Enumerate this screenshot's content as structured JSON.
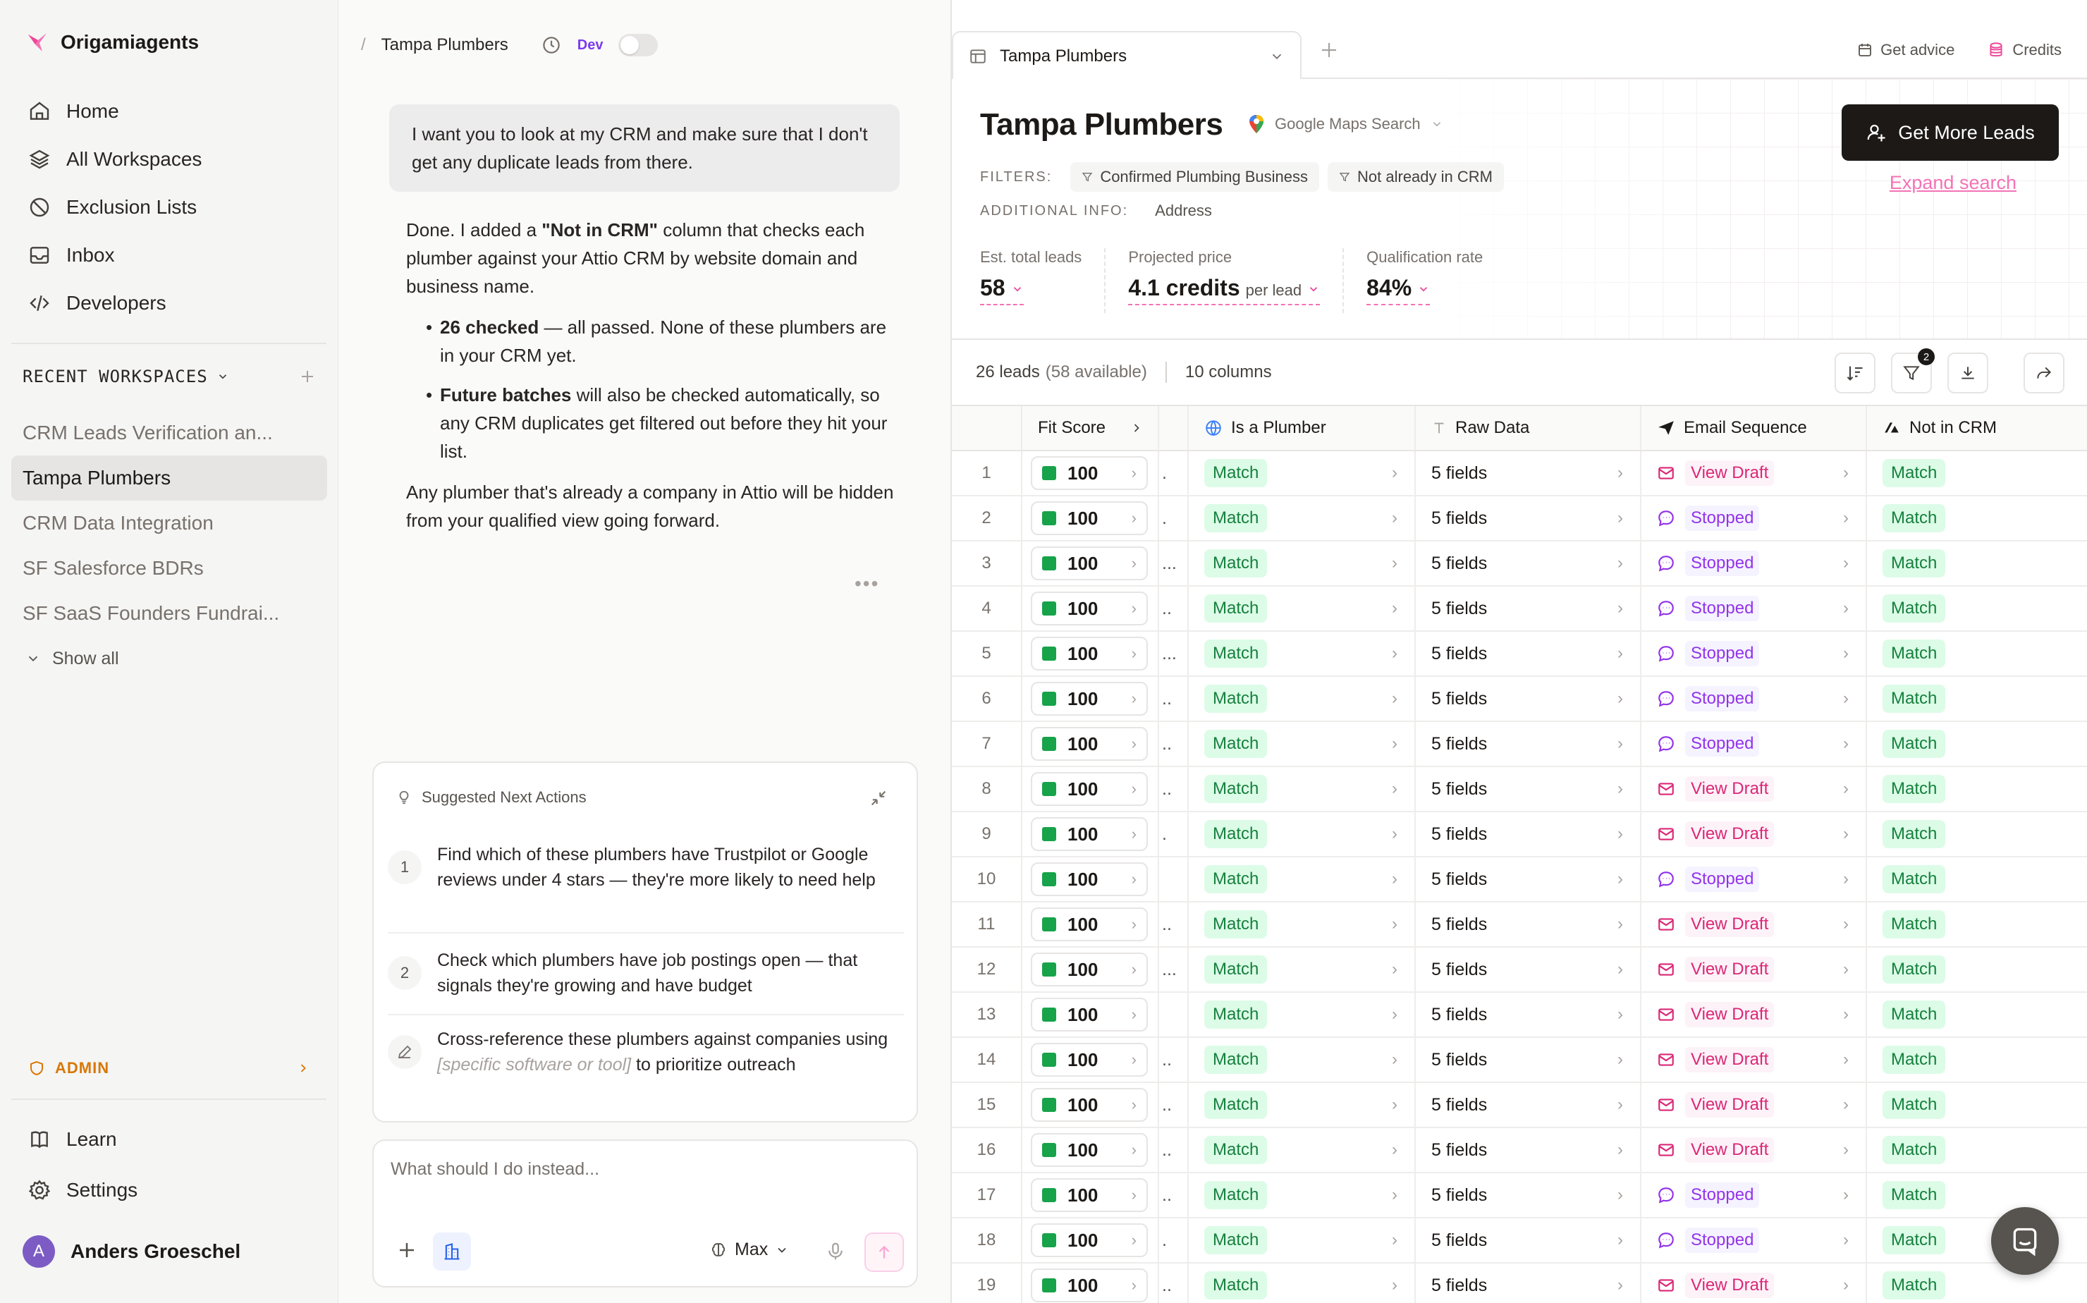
{
  "sidebar": {
    "brand": "Origamiagents",
    "nav": [
      {
        "label": "Home",
        "icon": "home-icon"
      },
      {
        "label": "All Workspaces",
        "icon": "layers-icon"
      },
      {
        "label": "Exclusion Lists",
        "icon": "block-icon"
      },
      {
        "label": "Inbox",
        "icon": "inbox-icon"
      },
      {
        "label": "Developers",
        "icon": "code-icon"
      }
    ],
    "recent_title": "RECENT WORKSPACES",
    "recent": [
      "CRM Leads Verification an...",
      "Tampa Plumbers",
      "CRM Data Integration",
      "SF Salesforce BDRs",
      "SF SaaS Founders Fundrai..."
    ],
    "show_all": "Show all",
    "admin_label": "ADMIN",
    "bottom_nav": [
      {
        "label": "Learn",
        "icon": "book-icon"
      },
      {
        "label": "Settings",
        "icon": "gear-icon"
      }
    ],
    "user": {
      "initial": "A",
      "name": "Anders Groeschel"
    }
  },
  "chat": {
    "breadcrumb": "Tampa Plumbers",
    "dev_label": "Dev",
    "user_message": "I want you to look at my CRM and make sure that I don't get any duplicate leads from there.",
    "bot": {
      "p1_a": "Done. I added a ",
      "p1_b": "\"Not in CRM\"",
      "p1_c": " column that checks each plumber against your Attio CRM by website domain and business name.",
      "b1_bold": "26 checked",
      "b1_rest": " — all passed. None of these plumbers are in your CRM yet.",
      "b2_bold": "Future batches",
      "b2_rest": " will also be checked automatically, so any CRM duplicates get filtered out before they hit your list.",
      "p2": "Any plumber that's already a company in Attio will be hidden from your qualified view going forward."
    },
    "more": "•••",
    "suggest_title": "Suggested Next Actions",
    "suggestions": [
      {
        "num": "1",
        "text": "Find which of these plumbers have Trustpilot or Google reviews under 4 stars — they're more likely to need help"
      },
      {
        "num": "2",
        "text": "Check which plumbers have job postings open — that signals they're growing and have budget"
      }
    ],
    "suggestion3": {
      "a": "Cross-reference these plumbers against companies using ",
      "placeholder": "[specific software or tool]",
      "b": " to prioritize outreach"
    },
    "composer_placeholder": "What should I do instead...",
    "model": "Max"
  },
  "main": {
    "tab_label": "Tampa Plumbers",
    "get_advice": "Get advice",
    "credits": "Credits",
    "title": "Tampa Plumbers",
    "source": "Google Maps Search",
    "filters_label": "FILTERS:",
    "filters": [
      "Confirmed Plumbing Business",
      "Not already in CRM"
    ],
    "addinfo_label": "ADDITIONAL INFO:",
    "addinfo_value": "Address",
    "stats": [
      {
        "label": "Est. total leads",
        "value": "58",
        "suffix": ""
      },
      {
        "label": "Projected price",
        "value": "4.1 credits",
        "suffix": "per lead"
      },
      {
        "label": "Qualification rate",
        "value": "84%",
        "suffix": ""
      }
    ],
    "cta": "Get More Leads",
    "expand": "Expand search",
    "leads_count": "26 leads",
    "leads_available": "(58 available)",
    "columns_count": "10 columns",
    "filter_badge": "2"
  },
  "table": {
    "headers": {
      "fit": "Fit Score",
      "plumber": "Is a Plumber",
      "raw": "Raw Data",
      "email": "Email Sequence",
      "crm": "Not in CRM"
    },
    "rows": [
      {
        "n": "1",
        "score": "100",
        "mini": ".",
        "plumber": "Match",
        "raw": "5 fields",
        "email": "View Draft",
        "crm": "Match"
      },
      {
        "n": "2",
        "score": "100",
        "mini": ".",
        "plumber": "Match",
        "raw": "5 fields",
        "email": "Stopped",
        "crm": "Match"
      },
      {
        "n": "3",
        "score": "100",
        "mini": "...",
        "plumber": "Match",
        "raw": "5 fields",
        "email": "Stopped",
        "crm": "Match"
      },
      {
        "n": "4",
        "score": "100",
        "mini": "..",
        "plumber": "Match",
        "raw": "5 fields",
        "email": "Stopped",
        "crm": "Match"
      },
      {
        "n": "5",
        "score": "100",
        "mini": "...",
        "plumber": "Match",
        "raw": "5 fields",
        "email": "Stopped",
        "crm": "Match"
      },
      {
        "n": "6",
        "score": "100",
        "mini": "..",
        "plumber": "Match",
        "raw": "5 fields",
        "email": "Stopped",
        "crm": "Match"
      },
      {
        "n": "7",
        "score": "100",
        "mini": "..",
        "plumber": "Match",
        "raw": "5 fields",
        "email": "Stopped",
        "crm": "Match"
      },
      {
        "n": "8",
        "score": "100",
        "mini": "..",
        "plumber": "Match",
        "raw": "5 fields",
        "email": "View Draft",
        "crm": "Match"
      },
      {
        "n": "9",
        "score": "100",
        "mini": ".",
        "plumber": "Match",
        "raw": "5 fields",
        "email": "View Draft",
        "crm": "Match"
      },
      {
        "n": "10",
        "score": "100",
        "mini": "",
        "plumber": "Match",
        "raw": "5 fields",
        "email": "Stopped",
        "crm": "Match"
      },
      {
        "n": "11",
        "score": "100",
        "mini": "..",
        "plumber": "Match",
        "raw": "5 fields",
        "email": "View Draft",
        "crm": "Match"
      },
      {
        "n": "12",
        "score": "100",
        "mini": "...",
        "plumber": "Match",
        "raw": "5 fields",
        "email": "View Draft",
        "crm": "Match"
      },
      {
        "n": "13",
        "score": "100",
        "mini": "",
        "plumber": "Match",
        "raw": "5 fields",
        "email": "View Draft",
        "crm": "Match"
      },
      {
        "n": "14",
        "score": "100",
        "mini": "..",
        "plumber": "Match",
        "raw": "5 fields",
        "email": "View Draft",
        "crm": "Match"
      },
      {
        "n": "15",
        "score": "100",
        "mini": "..",
        "plumber": "Match",
        "raw": "5 fields",
        "email": "View Draft",
        "crm": "Match"
      },
      {
        "n": "16",
        "score": "100",
        "mini": "..",
        "plumber": "Match",
        "raw": "5 fields",
        "email": "View Draft",
        "crm": "Match"
      },
      {
        "n": "17",
        "score": "100",
        "mini": "..",
        "plumber": "Match",
        "raw": "5 fields",
        "email": "Stopped",
        "crm": "Match"
      },
      {
        "n": "18",
        "score": "100",
        "mini": ".",
        "plumber": "Match",
        "raw": "5 fields",
        "email": "Stopped",
        "crm": "Match"
      },
      {
        "n": "19",
        "score": "100",
        "mini": "..",
        "plumber": "Match",
        "raw": "5 fields",
        "email": "View Draft",
        "crm": "Match"
      }
    ]
  },
  "colors": {
    "accent_pink": "#f472b6",
    "match_green": "#15803d",
    "draft_pink": "#db2777",
    "stopped_purple": "#9333ea",
    "admin_orange": "#d97706"
  }
}
